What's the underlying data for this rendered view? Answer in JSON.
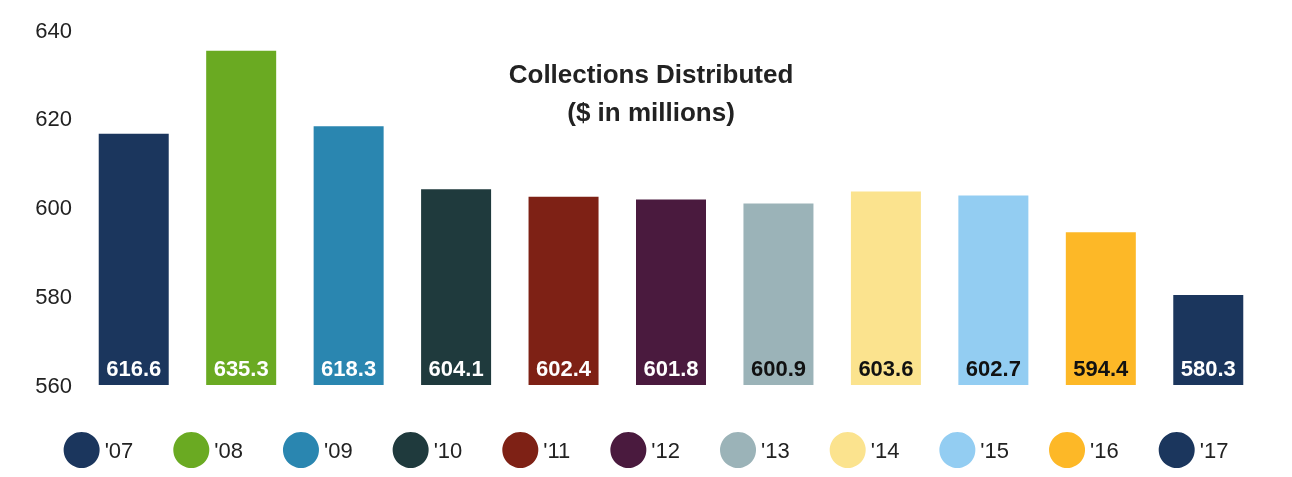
{
  "chart_data": {
    "type": "bar",
    "title": "Collections Distributed\n($ in millions)",
    "categories": [
      null,
      null,
      null,
      null,
      null,
      null,
      null,
      null,
      null,
      null,
      null
    ],
    "stacked": true,
    "series": [
      {
        "name": "'07",
        "color": "#1b365d",
        "values": [
          616.6,
          null,
          null,
          null,
          null,
          null,
          null,
          null,
          null,
          null,
          null
        ]
      },
      {
        "name": "'08",
        "color": "#6aaa22",
        "values": [
          null,
          635.3,
          null,
          null,
          null,
          null,
          null,
          null,
          null,
          null,
          null
        ]
      },
      {
        "name": "'09",
        "color": "#2a86b0",
        "values": [
          null,
          null,
          618.3,
          null,
          null,
          null,
          null,
          null,
          null,
          null,
          null
        ]
      },
      {
        "name": "'10",
        "color": "#1f3a3d",
        "values": [
          null,
          null,
          null,
          604.1,
          null,
          null,
          null,
          null,
          null,
          null,
          null
        ]
      },
      {
        "name": "'11",
        "color": "#7e2115",
        "values": [
          null,
          null,
          null,
          null,
          602.4,
          null,
          null,
          null,
          null,
          null,
          null
        ]
      },
      {
        "name": "'12",
        "color": "#4a1a3e",
        "values": [
          null,
          null,
          null,
          null,
          null,
          601.8,
          null,
          null,
          null,
          null,
          null
        ]
      },
      {
        "name": "'13",
        "color": "#9bb3b8",
        "values": [
          null,
          null,
          null,
          null,
          null,
          null,
          600.9,
          null,
          null,
          null,
          null
        ]
      },
      {
        "name": "'14",
        "color": "#fbe38e",
        "values": [
          null,
          null,
          null,
          null,
          null,
          null,
          null,
          603.6,
          null,
          null,
          null
        ]
      },
      {
        "name": "'15",
        "color": "#93cdf2",
        "values": [
          null,
          null,
          null,
          null,
          null,
          null,
          null,
          null,
          602.7,
          null,
          null
        ]
      },
      {
        "name": "'16",
        "color": "#fdb827",
        "values": [
          null,
          null,
          null,
          null,
          null,
          null,
          null,
          null,
          null,
          594.4,
          null
        ]
      },
      {
        "name": "'17",
        "color": "#1b365d",
        "values": [
          null,
          null,
          null,
          null,
          null,
          null,
          null,
          null,
          null,
          null,
          580.3
        ]
      }
    ],
    "ylim": [
      560,
      640
    ],
    "yticks": [
      560,
      580,
      600,
      620,
      640
    ],
    "grid": false,
    "legend": "bottom",
    "data_labels": true,
    "tick_labels": "y"
  }
}
